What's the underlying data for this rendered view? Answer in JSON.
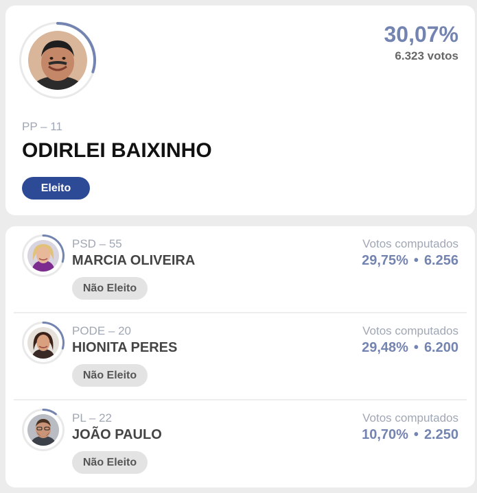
{
  "winner": {
    "percent": "30,07%",
    "votes": "6.323 votos",
    "party": "PP – 11",
    "name": "ODIRLEI BAIXINHO",
    "status": "Eleito",
    "progress": 0.3007
  },
  "others": [
    {
      "party": "PSD – 55",
      "name": "MARCIA OLIVEIRA",
      "status": "Não Eleito",
      "votes_label": "Votos computados",
      "percent": "29,75%",
      "separator": "•",
      "votes": "6.256",
      "progress": 0.2975
    },
    {
      "party": "PODE – 20",
      "name": "HIONITA PERES",
      "status": "Não Eleito",
      "votes_label": "Votos computados",
      "percent": "29,48%",
      "separator": "•",
      "votes": "6.200",
      "progress": 0.2948
    },
    {
      "party": "PL – 22",
      "name": "JOÃO PAULO",
      "status": "Não Eleito",
      "votes_label": "Votos computados",
      "percent": "10,70%",
      "separator": "•",
      "votes": "2.250",
      "progress": 0.107
    }
  ],
  "colors": {
    "accent": "#7484b0",
    "elected_badge": "#2d4a97",
    "not_elected_badge": "#e3e3e3"
  }
}
